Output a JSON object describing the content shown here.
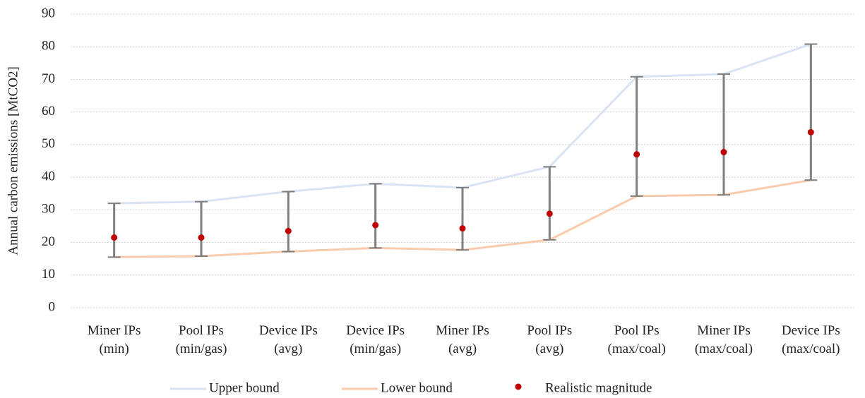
{
  "chart_data": {
    "type": "line",
    "y_label": "Annual carbon emissions [MtCO2]",
    "categories": [
      "Miner IPs\n(min)",
      "Pool IPs\n(min/gas)",
      "Device IPs\n(avg)",
      "Device IPs\n(min/gas)",
      "Miner IPs\n(avg)",
      "Pool IPs\n(avg)",
      "Pool IPs\n(max/coal)",
      "Miner IPs\n(max/coal)",
      "Device IPs\n(max/coal)"
    ],
    "series": [
      {
        "name": "Upper bound",
        "color": "#dae3f3",
        "style": "line",
        "values": [
          32,
          32.5,
          35.6,
          38,
          36.8,
          43.2,
          70.8,
          71.6,
          80.8
        ]
      },
      {
        "name": "Lower bound",
        "color": "#f8cbad",
        "style": "line",
        "values": [
          15.5,
          15.8,
          17.2,
          18.3,
          17.7,
          20.8,
          34.2,
          34.6,
          39.1
        ]
      },
      {
        "name": "Realistic magnitude",
        "color": "#c00000",
        "style": "dot",
        "values": [
          21.5,
          21.5,
          23.5,
          25.3,
          24.3,
          28.8,
          47,
          47.7,
          53.8
        ]
      }
    ],
    "error_bar_color": "#7f7f7f",
    "ylim": [
      0,
      90
    ],
    "yticks": [
      0,
      10,
      20,
      30,
      40,
      50,
      60,
      70,
      80,
      90
    ],
    "grid": true,
    "legend": "bottom"
  }
}
